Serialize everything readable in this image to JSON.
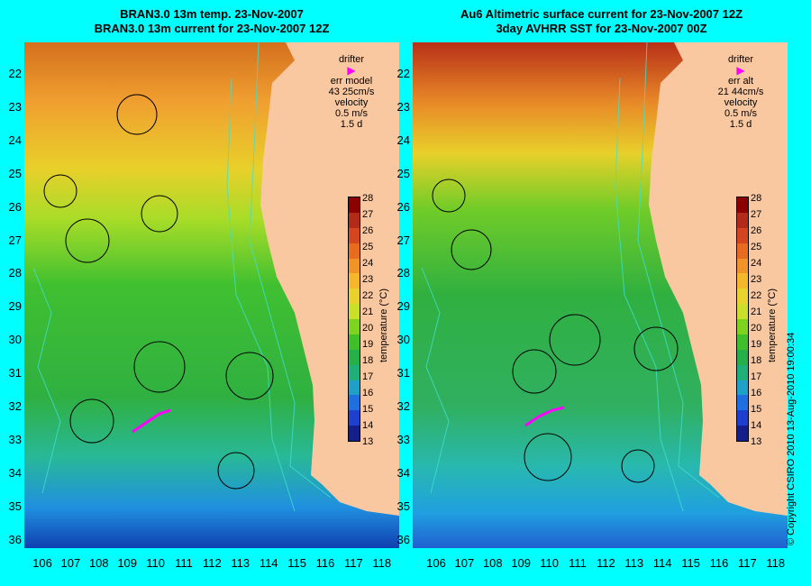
{
  "titles": {
    "left_line1": "BRAN3.0 13m temp. 23-Nov-2007",
    "left_line2": "BRAN3.0 13m current for 23-Nov-2007 12Z",
    "right_line1": "Au6 Altimetric surface current for 23-Nov-2007 12Z",
    "right_line2": "3day AVHRR SST for 23-Nov-2007 00Z"
  },
  "latitude_labels": [
    "22",
    "23",
    "24",
    "25",
    "26",
    "27",
    "28",
    "29",
    "30",
    "31",
    "32",
    "33",
    "34",
    "35",
    "36"
  ],
  "longitude_labels": [
    "106",
    "107",
    "108",
    "109",
    "110",
    "111",
    "112",
    "113",
    "114",
    "115",
    "116",
    "117",
    "118"
  ],
  "legends": {
    "left": {
      "drifter": "drifter",
      "err_label": "err model",
      "err_value": "43 25cm/s",
      "velocity": "velocity",
      "vel_scale": "0.5 m/s",
      "vel_time": "1.5 d"
    },
    "right": {
      "drifter": "drifter",
      "err_label": "err alt",
      "err_value": "21 44cm/s",
      "velocity": "velocity",
      "vel_scale": "0.5 m/s",
      "vel_time": "1.5 d"
    }
  },
  "colorbar": {
    "ticks": [
      "28",
      "27",
      "26",
      "25",
      "24",
      "23",
      "22",
      "21",
      "20",
      "19",
      "18",
      "17",
      "16",
      "15",
      "14",
      "13"
    ],
    "label": "temperature (°C)",
    "colors": [
      "#8b0000",
      "#b22a1a",
      "#d4461f",
      "#e86c1f",
      "#f0942a",
      "#f5b82d",
      "#e8d22d",
      "#c8e02a",
      "#7ed321",
      "#3fbf2a",
      "#25b04a",
      "#1fb07a",
      "#1fa0c8",
      "#1f6fe0",
      "#1f3fd0",
      "#141f8c"
    ]
  },
  "copyright": "© Copyright CSIRO 2010   13-Aug-2010 19:00:34",
  "colors": {
    "background": "#00ffff",
    "land": "#fac8a0",
    "drifter": "#ff00ff",
    "isobath": "#40e0d0"
  }
}
